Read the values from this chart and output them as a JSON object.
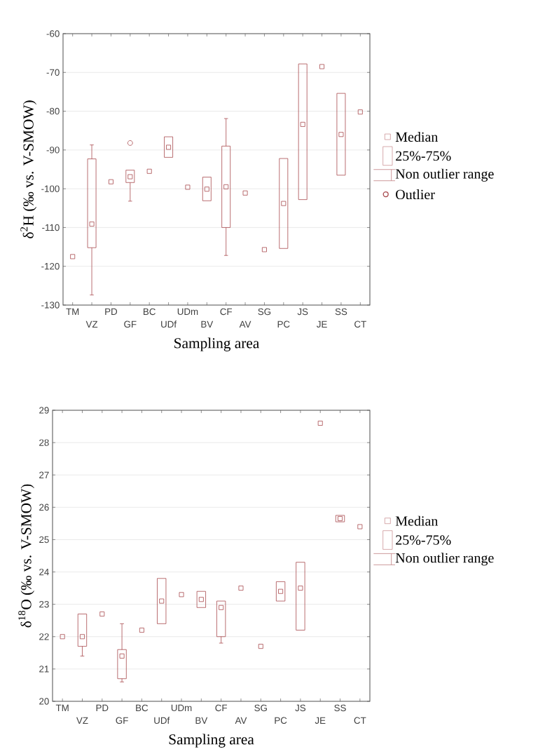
{
  "chart_data": [
    {
      "type": "box",
      "xlabel": "Sampling area",
      "ylabel": "δ$^{2}$H (‰ vs. V-SMOW)",
      "color": "#a84a4e",
      "categories": [
        "TM",
        "VZ",
        "PD",
        "GF",
        "BC",
        "UDf",
        "UDm",
        "BV",
        "CF",
        "AV",
        "SG",
        "PC",
        "JS",
        "JE",
        "SS",
        "CT"
      ],
      "boxes": [
        null,
        {
          "low": -127.4,
          "q1": -115.2,
          "median": -109.1,
          "q3": -92.3,
          "high": -88.7
        },
        null,
        {
          "low": -103.2,
          "q1": -98.4,
          "median": -96.9,
          "q3": -95.2,
          "high": -95.2,
          "outliers": [
            -88.2
          ]
        },
        null,
        {
          "low": -91.9,
          "q1": -91.9,
          "median": -89.3,
          "q3": -86.6,
          "high": -86.6
        },
        null,
        {
          "low": -103.1,
          "q1": -103.1,
          "median": -100.1,
          "q3": -97.0,
          "high": -97.0
        },
        {
          "low": -117.2,
          "q1": -110.0,
          "median": -99.5,
          "q3": -89.0,
          "high": -81.9
        },
        null,
        null,
        {
          "low": -115.4,
          "q1": -115.4,
          "median": -103.8,
          "q3": -92.2,
          "high": -92.2
        },
        {
          "low": -102.8,
          "q1": -102.8,
          "median": -83.4,
          "q3": -67.8,
          "high": -67.8
        },
        null,
        {
          "low": -96.5,
          "q1": -96.5,
          "median": -86.0,
          "q3": -75.4,
          "high": -75.4
        },
        null
      ],
      "series": [
        {
          "type": "scatter",
          "marker": "square",
          "x": [
            "TM",
            "PD",
            "BC",
            "UDm",
            "AV",
            "SG",
            "JE",
            "CT"
          ],
          "values": [
            -117.5,
            -98.2,
            -95.5,
            -99.6,
            -101.1,
            -115.7,
            -68.5,
            -80.2
          ]
        }
      ],
      "ylim": [
        -130,
        -60
      ],
      "yticks": [
        -130,
        -120,
        -110,
        -100,
        -90,
        -80,
        -70,
        -60
      ],
      "grid": "y",
      "annotations": [
        "Median",
        "25%-75%",
        "Non outlier range",
        "Outlier"
      ]
    },
    {
      "type": "box",
      "xlabel": "Sampling area",
      "ylabel": "δ$^{18}$O (‰ vs. V-SMOW)",
      "color": "#a84a4e",
      "categories": [
        "TM",
        "VZ",
        "PD",
        "GF",
        "BC",
        "UDf",
        "UDm",
        "BV",
        "CF",
        "AV",
        "SG",
        "PC",
        "JS",
        "JE",
        "SS",
        "CT"
      ],
      "boxes": [
        null,
        {
          "low": 21.4,
          "q1": 21.7,
          "median": 22.0,
          "q3": 22.7,
          "high": 22.7
        },
        null,
        {
          "low": 20.6,
          "q1": 20.7,
          "median": 21.4,
          "q3": 21.6,
          "high": 22.4
        },
        null,
        {
          "low": 22.4,
          "q1": 22.4,
          "median": 23.1,
          "q3": 23.8,
          "high": 23.8
        },
        null,
        {
          "low": 22.9,
          "q1": 22.9,
          "median": 23.15,
          "q3": 23.4,
          "high": 23.4
        },
        {
          "low": 21.8,
          "q1": 22.0,
          "median": 22.9,
          "q3": 23.1,
          "high": 23.1
        },
        null,
        null,
        {
          "low": 23.1,
          "q1": 23.1,
          "median": 23.4,
          "q3": 23.7,
          "high": 23.7
        },
        {
          "low": 22.2,
          "q1": 22.2,
          "median": 23.5,
          "q3": 24.3,
          "high": 24.3
        },
        null,
        {
          "low": 25.55,
          "q1": 25.55,
          "median": 25.65,
          "q3": 25.75,
          "high": 25.75
        },
        null
      ],
      "series": [
        {
          "type": "scatter",
          "marker": "square",
          "x": [
            "TM",
            "PD",
            "BC",
            "UDm",
            "AV",
            "SG",
            "JE",
            "CT"
          ],
          "values": [
            22.0,
            22.7,
            22.2,
            23.3,
            23.5,
            21.7,
            28.6,
            25.4
          ]
        }
      ],
      "ylim": [
        20,
        29
      ],
      "yticks": [
        20,
        21,
        22,
        23,
        24,
        25,
        26,
        27,
        28,
        29
      ],
      "grid": "y",
      "annotations": [
        "Median",
        "25%-75%",
        "Non outlier range"
      ]
    }
  ]
}
